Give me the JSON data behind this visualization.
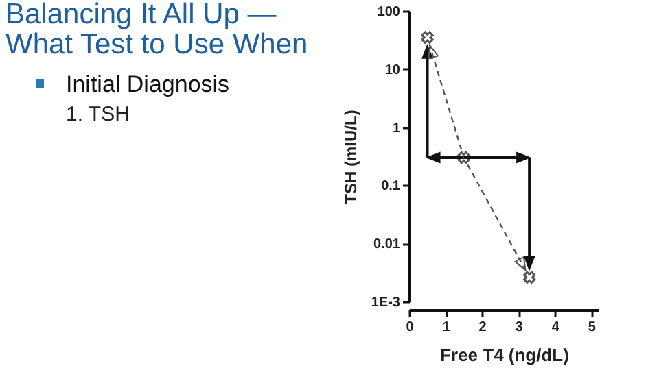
{
  "chart_data": {
    "type": "scatter",
    "title": "Balancing It All Up — What Test to Use When",
    "annotations": [
      "Initial Diagnosis",
      "1. TSH"
    ],
    "xlabel": "Free T4 (ng/dL)",
    "ylabel": "TSH (mIU/L)",
    "log": "y",
    "grid": false,
    "marker": "cross",
    "xlim": [
      0,
      5.2
    ],
    "xticks": [
      0,
      1,
      2,
      3,
      4,
      5
    ],
    "ylim": [
      0.001,
      100
    ],
    "yticks": [
      100,
      10,
      1,
      0.1,
      0.01,
      {
        "value": 0.001,
        "label": "1E-3"
      }
    ],
    "series": [
      {
        "color": "#111111",
        "x": [
          0.5,
          1.5,
          3.3
        ],
        "values": [
          35,
          0.3,
          0.0026
        ]
      }
    ]
  }
}
